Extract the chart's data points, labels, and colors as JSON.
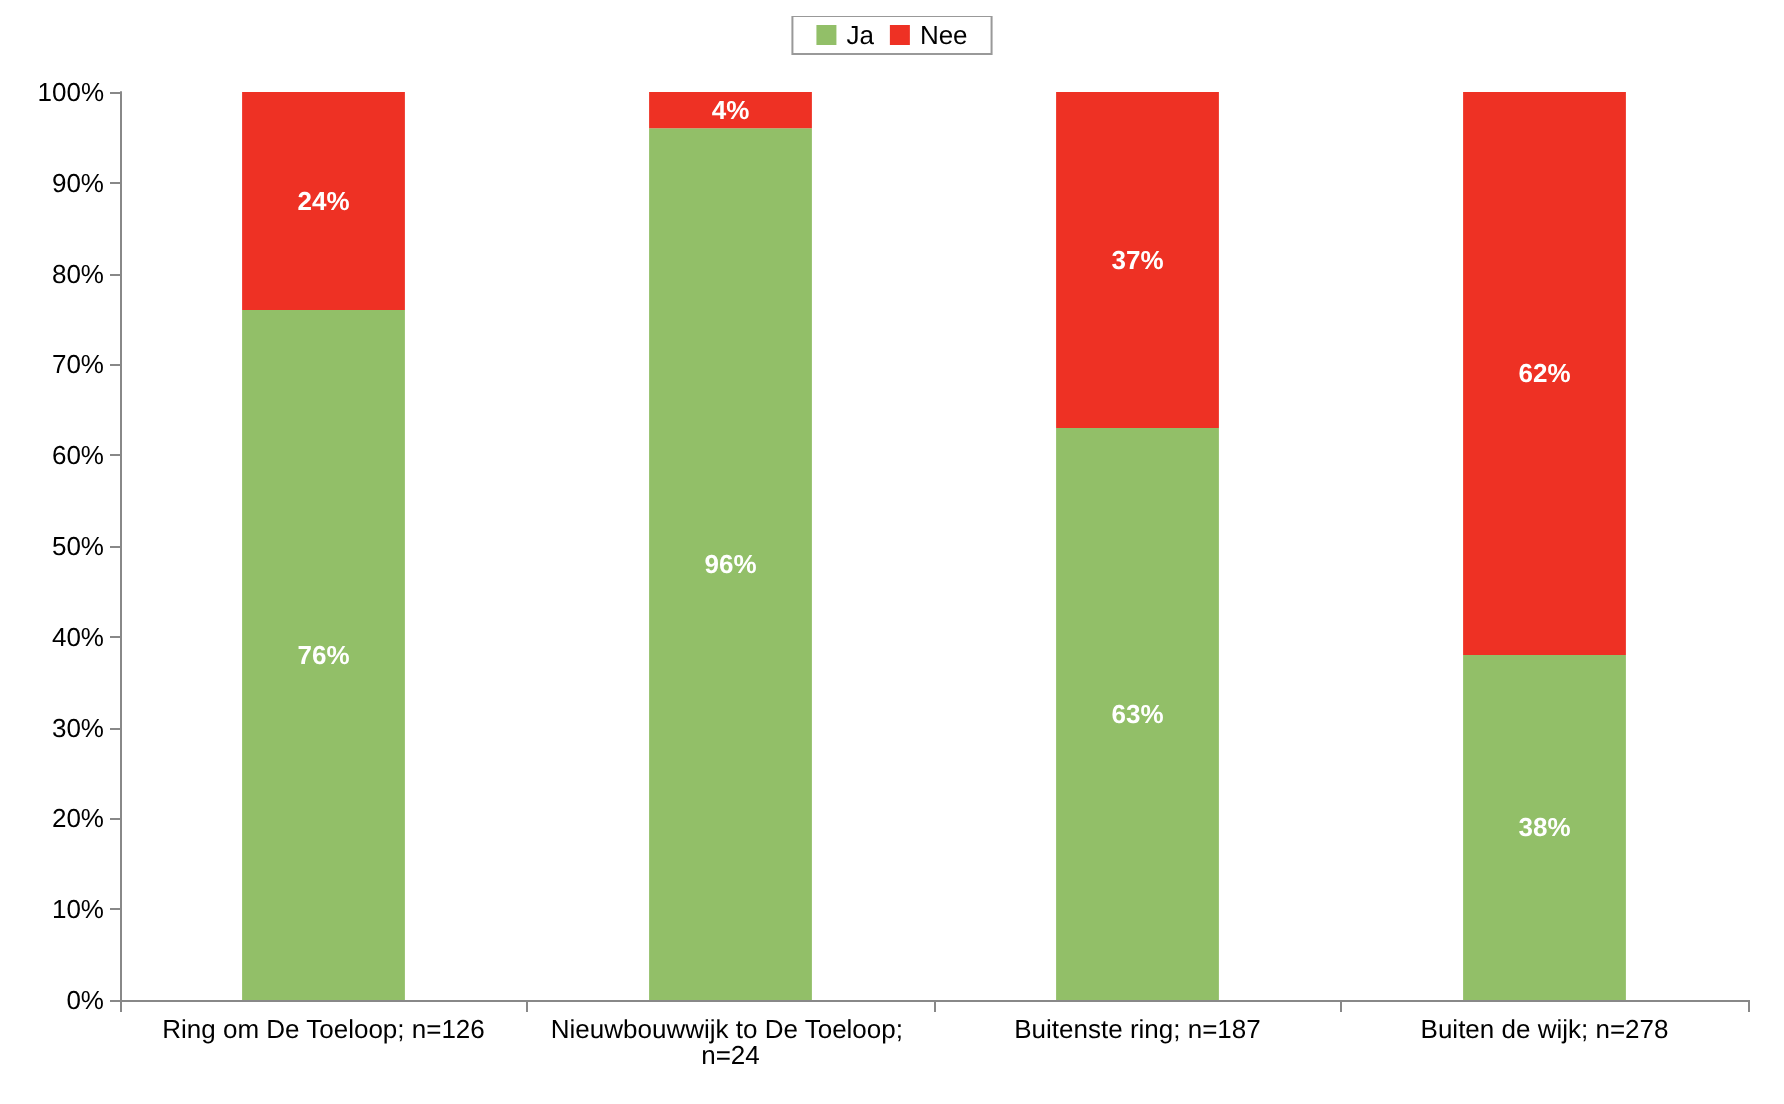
{
  "chart_data": {
    "type": "bar",
    "stacked": true,
    "categories": [
      "Ring om De Toeloop; n=126",
      "Nieuwbouwwijk to De Toeloop; n=24",
      "Buitenste ring; n=187",
      "Buiten de wijk; n=278"
    ],
    "series": [
      {
        "name": "Ja",
        "color": "#92bf68",
        "values": [
          76,
          96,
          63,
          38
        ],
        "value_labels": [
          "76%",
          "96%",
          "63%",
          "38%"
        ]
      },
      {
        "name": "Nee",
        "color": "#ee3124",
        "values": [
          24,
          4,
          37,
          62
        ],
        "value_labels": [
          "24%",
          "4%",
          "37%",
          "62%"
        ]
      }
    ],
    "ylim": [
      0,
      100
    ],
    "yticks": [
      {
        "value": 0,
        "label": "0%"
      },
      {
        "value": 10,
        "label": "10%"
      },
      {
        "value": 20,
        "label": "20%"
      },
      {
        "value": 30,
        "label": "30%"
      },
      {
        "value": 40,
        "label": "40%"
      },
      {
        "value": 50,
        "label": "50%"
      },
      {
        "value": 60,
        "label": "60%"
      },
      {
        "value": 70,
        "label": "70%"
      },
      {
        "value": 80,
        "label": "80%"
      },
      {
        "value": 90,
        "label": "90%"
      },
      {
        "value": 100,
        "label": "100%"
      }
    ],
    "grid": false,
    "legend": "top"
  }
}
